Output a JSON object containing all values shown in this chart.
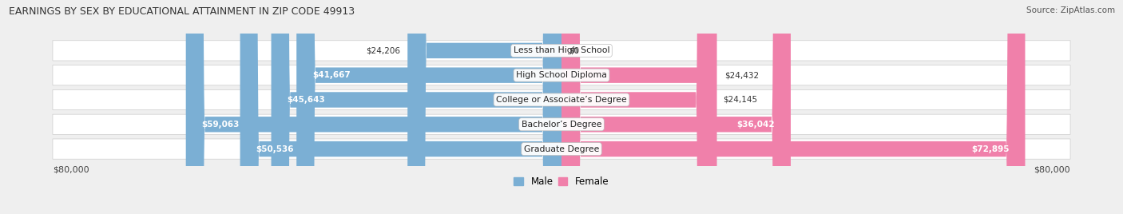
{
  "title": "EARNINGS BY SEX BY EDUCATIONAL ATTAINMENT IN ZIP CODE 49913",
  "source": "Source: ZipAtlas.com",
  "categories": [
    "Less than High School",
    "High School Diploma",
    "College or Associate’s Degree",
    "Bachelor’s Degree",
    "Graduate Degree"
  ],
  "male_values": [
    24206,
    41667,
    45643,
    59063,
    50536
  ],
  "female_values": [
    0,
    24432,
    24145,
    36042,
    72895
  ],
  "max_value": 80000,
  "male_color": "#7bafd4",
  "female_color": "#f080aa",
  "male_label": "Male",
  "female_label": "Female",
  "bg_color": "#efefef",
  "row_bg_color": "#ffffff",
  "axis_label": "$80,000",
  "value_inside_threshold": 30000
}
